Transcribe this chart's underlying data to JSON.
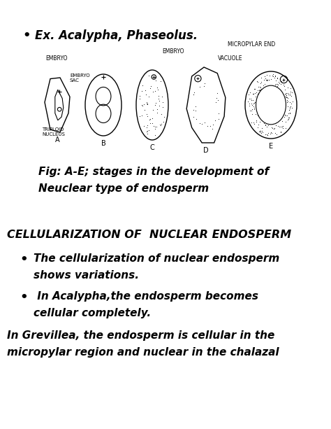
{
  "bg_color": "#ffffff",
  "bullet1": "Ex. Acalypha, Phaseolus.",
  "fig_caption_line1": "Fig: A-E; stages in the development of",
  "fig_caption_line2": "Neuclear type of endosperm",
  "section_heading": "CELLULARIZATION OF  NUCLEAR ENDOSPERM",
  "bullet2_line1": "The cellularization of nuclear endosperm",
  "bullet2_line2": "shows variations.",
  "bullet3_line1": " In Acalypha,the endosperm becomes",
  "bullet3_line2": "cellular completely.",
  "italic_line1": "In Grevillea, the endosperm is cellular in the",
  "italic_line2": "micropylar region and nuclear in the chalazal",
  "fig_labels": [
    "A",
    "B",
    "C",
    "D",
    "E"
  ],
  "label_embryo_A": "EMBRYO",
  "label_embryo_sac": "EMBRYO\nSAC",
  "label_triploid": "TRIPLOID\nNUCLEUS",
  "label_embryo_C": "EMBRYO",
  "label_micropylar": "MICROPYLAR END",
  "label_vacuole": "VACUOLE"
}
